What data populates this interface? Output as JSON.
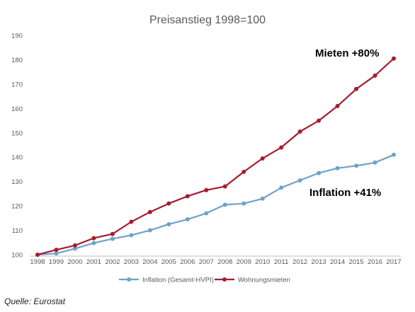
{
  "source": "Quelle: Eurostat",
  "chart_data": {
    "type": "line",
    "title": "Preisanstieg 1998=100",
    "xlabel": "",
    "ylabel": "",
    "ylim": [
      100,
      190
    ],
    "yticks": [
      100,
      110,
      120,
      130,
      140,
      150,
      160,
      170,
      180,
      190
    ],
    "x": [
      "1998",
      "1999",
      "2000",
      "2001",
      "2002",
      "2003",
      "2004",
      "2005",
      "2006",
      "2007",
      "2008",
      "2009",
      "2010",
      "2011",
      "2012",
      "2013",
      "2014",
      "2015",
      "2016",
      "2017"
    ],
    "grid": false,
    "legend": "bottom",
    "series": [
      {
        "name": "Inflation (Gesamt-HVPI)",
        "color": "#6fa3c8",
        "values": [
          100,
          100.5,
          102.5,
          104.8,
          106.5,
          108,
          110,
          112.5,
          114.5,
          117,
          120.5,
          121,
          123,
          127.5,
          130.5,
          133.5,
          135.5,
          136.5,
          137.8,
          141
        ]
      },
      {
        "name": "Wohnungsmieten",
        "color": "#a51c30",
        "values": [
          100,
          102,
          103.8,
          106.8,
          108.5,
          113.5,
          117.5,
          121,
          124,
          126.5,
          128,
          134,
          139.5,
          144,
          150.5,
          155,
          161,
          168,
          173.5,
          180.5
        ]
      }
    ],
    "annotations": [
      {
        "text": "Mieten +80%",
        "series": 1,
        "at": "2017"
      },
      {
        "text": "Inflation +41%",
        "series": 0,
        "at": "2017"
      }
    ]
  }
}
